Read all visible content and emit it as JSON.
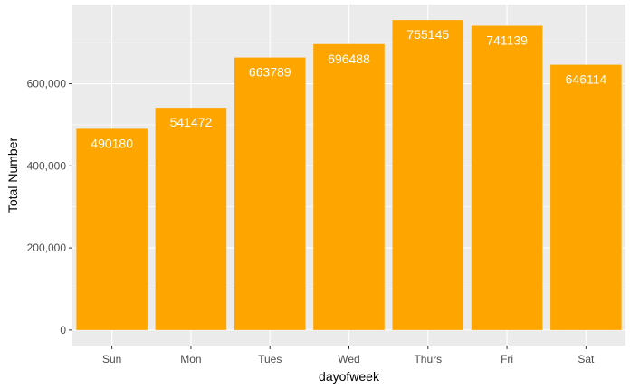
{
  "chart_data": {
    "type": "bar",
    "title": "",
    "xlabel": "dayofweek",
    "ylabel": "Total Number",
    "categories": [
      "Sun",
      "Mon",
      "Tues",
      "Wed",
      "Thurs",
      "Fri",
      "Sat"
    ],
    "values": [
      490180,
      541472,
      663789,
      696488,
      755145,
      741139,
      646114
    ],
    "data_labels": [
      "490180",
      "541472",
      "663789",
      "696488",
      "755145",
      "741139",
      "646114"
    ],
    "yticks": [
      0,
      200000,
      400000,
      600000
    ],
    "ytick_labels": [
      "0",
      "200,000",
      "400,000",
      "600,000"
    ],
    "ylim": [
      -37757,
      792902
    ],
    "grid": true,
    "legend": "none",
    "colors": {
      "bar": "#FFA500",
      "panel": "#EBEBEB",
      "grid_major": "#FFFFFF",
      "tick_text": "#4D4D4D",
      "label_text": "#FFFFFF"
    }
  }
}
